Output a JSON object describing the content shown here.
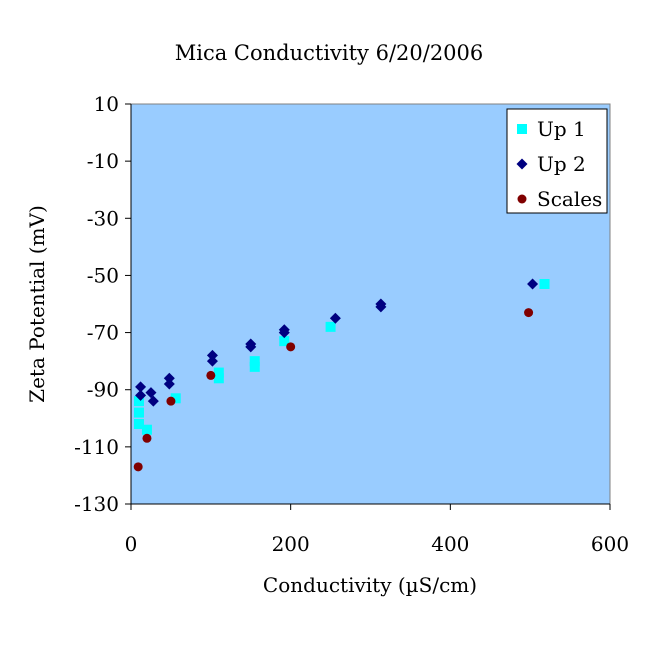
{
  "chart_data": {
    "type": "scatter",
    "title": "Mica Conductivity 6/20/2006",
    "xlabel": "Conductivity (µS/cm)",
    "ylabel": "Zeta Potential (mV)",
    "xlim": [
      0,
      600
    ],
    "ylim": [
      -130,
      10
    ],
    "xticks": [
      0,
      200,
      400,
      600
    ],
    "yticks": [
      10,
      -10,
      -30,
      -50,
      -70,
      -90,
      -110,
      -130
    ],
    "grid": false,
    "legend_position": "top-right",
    "series": [
      {
        "name": "Up 1",
        "marker": "square",
        "color": "#00FFFF",
        "points": [
          [
            10,
            -94
          ],
          [
            10,
            -98
          ],
          [
            10,
            -102
          ],
          [
            20,
            -104
          ],
          [
            56,
            -93
          ],
          [
            110,
            -84
          ],
          [
            110,
            -86
          ],
          [
            155,
            -80
          ],
          [
            155,
            -82
          ],
          [
            192,
            -73
          ],
          [
            250,
            -68
          ],
          [
            518,
            -53
          ]
        ]
      },
      {
        "name": "Up 2",
        "marker": "diamond",
        "color": "#000080",
        "points": [
          [
            12,
            -89
          ],
          [
            12,
            -92
          ],
          [
            25,
            -91
          ],
          [
            28,
            -94
          ],
          [
            48,
            -86
          ],
          [
            48,
            -88
          ],
          [
            102,
            -78
          ],
          [
            102,
            -80
          ],
          [
            150,
            -74
          ],
          [
            150,
            -75
          ],
          [
            192,
            -70
          ],
          [
            192,
            -69
          ],
          [
            256,
            -65
          ],
          [
            313,
            -61
          ],
          [
            313,
            -60
          ],
          [
            503,
            -53
          ]
        ]
      },
      {
        "name": "Scales",
        "marker": "circle",
        "color": "#800000",
        "points": [
          [
            9,
            -117
          ],
          [
            20,
            -107
          ],
          [
            50,
            -94
          ],
          [
            100,
            -85
          ],
          [
            200,
            -75
          ],
          [
            498,
            -63
          ]
        ]
      }
    ]
  },
  "colors": {
    "plot_background": "#99CCFF",
    "plot_border": "#808080",
    "axis": "#000000"
  }
}
